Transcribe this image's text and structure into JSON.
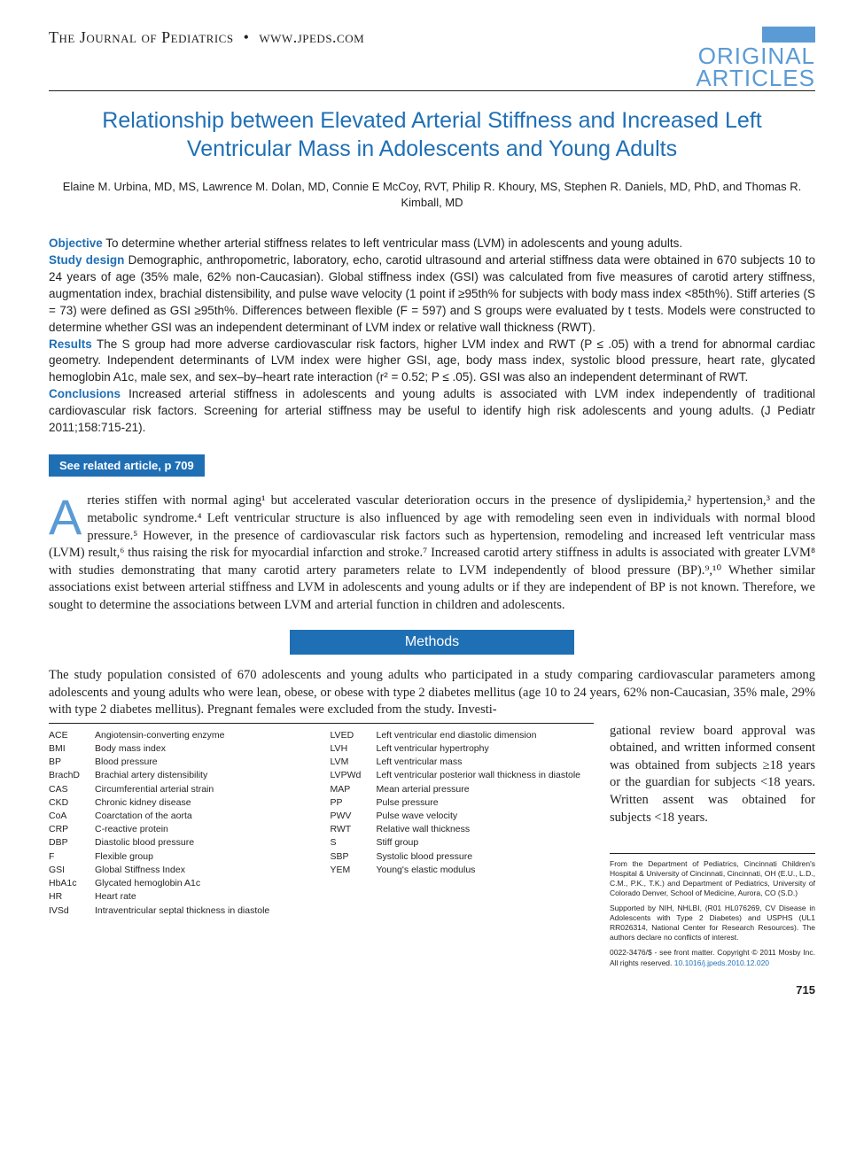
{
  "header": {
    "journal": "The Journal of Pediatrics",
    "url": "www.jpeds.com",
    "section_label_1": "ORIGINAL",
    "section_label_2": "ARTICLES"
  },
  "title": "Relationship between Elevated Arterial Stiffness and Increased Left Ventricular Mass in Adolescents and Young Adults",
  "authors": "Elaine M. Urbina, MD, MS, Lawrence M. Dolan, MD, Connie E McCoy, RVT, Philip R. Khoury, MS, Stephen R. Daniels, MD, PhD, and Thomas R. Kimball, MD",
  "abstract": {
    "objective_label": "Objective",
    "objective": " To determine whether arterial stiffness relates to left ventricular mass (LVM) in adolescents and young adults.",
    "design_label": "Study design",
    "design": " Demographic, anthropometric, laboratory, echo, carotid ultrasound and arterial stiffness data were obtained in 670 subjects 10 to 24 years of age (35% male, 62% non-Caucasian). Global stiffness index (GSI) was calculated from five measures of carotid artery stiffness, augmentation index, brachial distensibility, and pulse wave velocity (1 point if ≥95th% for subjects with body mass index <85th%). Stiff arteries (S = 73) were defined as GSI ≥95th%. Differences between flexible (F = 597) and S groups were evaluated by t tests. Models were constructed to determine whether GSI was an independent determinant of LVM index or relative wall thickness (RWT).",
    "results_label": "Results",
    "results": " The S group had more adverse cardiovascular risk factors, higher LVM index and RWT (P ≤ .05) with a trend for abnormal cardiac geometry. Independent determinants of LVM index were higher GSI, age, body mass index, systolic blood pressure, heart rate, glycated hemoglobin A1c, male sex, and sex–by–heart rate interaction (r² = 0.52; P ≤ .05). GSI was also an independent determinant of RWT.",
    "conclusions_label": "Conclusions",
    "conclusions": " Increased arterial stiffness in adolescents and young adults is associated with LVM index independently of traditional cardiovascular risk factors. Screening for arterial stiffness may be useful to identify high risk adolescents and young adults. (J Pediatr 2011;158:715-21)."
  },
  "related_badge": "See related article, p 709",
  "intro": {
    "dropcap": "A",
    "text": "rteries stiffen with normal aging¹ but accelerated vascular deterioration occurs in the presence of dyslipidemia,² hypertension,³ and the metabolic syndrome.⁴ Left ventricular structure is also influenced by age with remodeling seen even in individuals with normal blood pressure.⁵ However, in the presence of cardiovascular risk factors such as hypertension, remodeling and increased left ventricular mass (LVM) result,⁶ thus raising the risk for myocardial infarction and stroke.⁷ Increased carotid artery stiffness in adults is associated with greater LVM⁸ with studies demonstrating that many carotid artery parameters relate to LVM independently of blood pressure (BP).⁹,¹⁰ Whether similar associations exist between arterial stiffness and LVM in adolescents and young adults or if they are independent of BP is not known. Therefore, we sought to determine the associations between LVM and arterial function in children and adolescents."
  },
  "methods_label": "Methods",
  "methods_p1": "The study population consisted of 670 adolescents and young adults who participated in a study comparing cardiovascular parameters among adolescents and young adults who were lean, obese, or obese with type 2 diabetes mellitus (age 10 to 24 years, 62% non-Caucasian, 35% male, 29% with type 2 diabetes mellitus). Pregnant females were excluded from the study. Investi-",
  "methods_right": "gational review board approval was obtained, and written informed consent was obtained from subjects ≥18 years or the guardian for subjects <18 years. Written assent was obtained for subjects <18 years.",
  "abbreviations": {
    "col1": [
      {
        "k": "ACE",
        "v": "Angiotensin-converting enzyme"
      },
      {
        "k": "BMI",
        "v": "Body mass index"
      },
      {
        "k": "BP",
        "v": "Blood pressure"
      },
      {
        "k": "BrachD",
        "v": "Brachial artery distensibility"
      },
      {
        "k": "CAS",
        "v": "Circumferential arterial strain"
      },
      {
        "k": "CKD",
        "v": "Chronic kidney disease"
      },
      {
        "k": "CoA",
        "v": "Coarctation of the aorta"
      },
      {
        "k": "CRP",
        "v": "C-reactive protein"
      },
      {
        "k": "DBP",
        "v": "Diastolic blood pressure"
      },
      {
        "k": "F",
        "v": "Flexible group"
      },
      {
        "k": "GSI",
        "v": "Global Stiffness Index"
      },
      {
        "k": "HbA1c",
        "v": "Glycated hemoglobin A1c"
      },
      {
        "k": "HR",
        "v": "Heart rate"
      },
      {
        "k": "IVSd",
        "v": "Intraventricular septal thickness in diastole"
      }
    ],
    "col2": [
      {
        "k": "LVED",
        "v": "Left ventricular end diastolic dimension"
      },
      {
        "k": "LVH",
        "v": "Left ventricular hypertrophy"
      },
      {
        "k": "LVM",
        "v": "Left ventricular mass"
      },
      {
        "k": "LVPWd",
        "v": "Left ventricular posterior wall thickness in diastole"
      },
      {
        "k": "MAP",
        "v": "Mean arterial pressure"
      },
      {
        "k": "PP",
        "v": "Pulse pressure"
      },
      {
        "k": "PWV",
        "v": "Pulse wave velocity"
      },
      {
        "k": "RWT",
        "v": "Relative wall thickness"
      },
      {
        "k": "S",
        "v": "Stiff group"
      },
      {
        "k": "SBP",
        "v": "Systolic blood pressure"
      },
      {
        "k": "YEM",
        "v": "Young's elastic modulus"
      }
    ]
  },
  "footnotes": {
    "affil": "From the Department of Pediatrics, Cincinnati Children's Hospital & University of Cincinnati, Cincinnati, OH (E.U., L.D., C.M., P.K., T.K.) and Department of Pediatrics, University of Colorado Denver, School of Medicine, Aurora, CO (S.D.)",
    "support": "Supported by NIH, NHLBI, (R01 HL076269, CV Disease in Adolescents with Type 2 Diabetes) and USPHS (UL1 RR026314, National Center for Research Resources). The authors declare no conflicts of interest.",
    "copyright": "0022-3476/$ - see front matter. Copyright © 2011 Mosby Inc. All rights reserved. ",
    "doi": "10.1016/j.jpeds.2010.12.020"
  },
  "page_number": "715",
  "colors": {
    "accent": "#1f6fb5",
    "light_accent": "#5b9bd5",
    "text": "#231f20"
  }
}
